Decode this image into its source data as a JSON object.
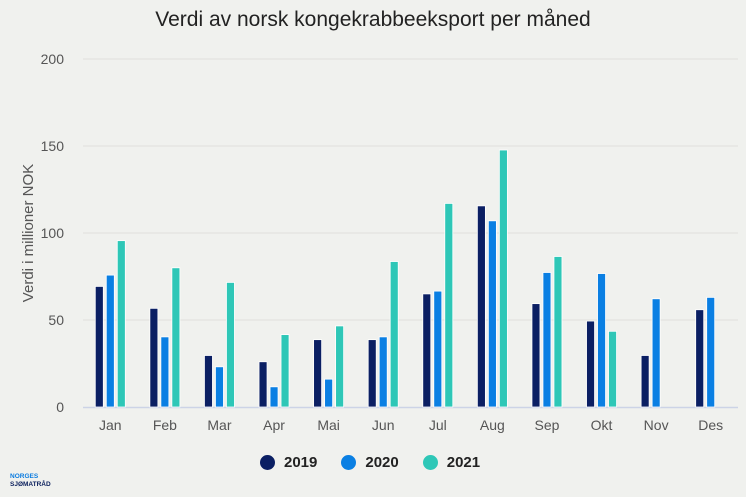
{
  "chart_data": {
    "type": "bar",
    "title": "Verdi av norsk kongekrabbeeksport per måned",
    "xlabel": "",
    "ylabel": "Verdi i millioner NOK",
    "ylim": [
      0,
      200
    ],
    "yticks": [
      "0",
      "50",
      "100",
      "150",
      "200"
    ],
    "grid": true,
    "legend_position": "bottom",
    "categories": [
      "Jan",
      "Feb",
      "Mar",
      "Apr",
      "Mai",
      "Jun",
      "Jul",
      "Aug",
      "Sep",
      "Okt",
      "Nov",
      "Des"
    ],
    "series": [
      {
        "name": "2019",
        "color": "#0b1f63",
        "values": [
          69.3,
          56.7,
          29.6,
          26,
          38.7,
          38.7,
          65,
          115.6,
          59.4,
          49.4,
          29.6,
          55.9
        ]
      },
      {
        "name": "2020",
        "color": "#0a7fe3",
        "values": [
          75.8,
          40.3,
          23.1,
          11.6,
          16,
          40.3,
          66.6,
          107,
          77.3,
          76.7,
          62.2,
          63
        ]
      },
      {
        "name": "2021",
        "color": "#2ec7b7",
        "values": [
          95.6,
          80,
          71.6,
          41.6,
          46.6,
          83.6,
          117,
          147.7,
          86.5,
          43.5,
          null,
          null
        ]
      }
    ]
  },
  "logo": {
    "line1": "NORGES",
    "line2": "SJØMATRÅD"
  }
}
